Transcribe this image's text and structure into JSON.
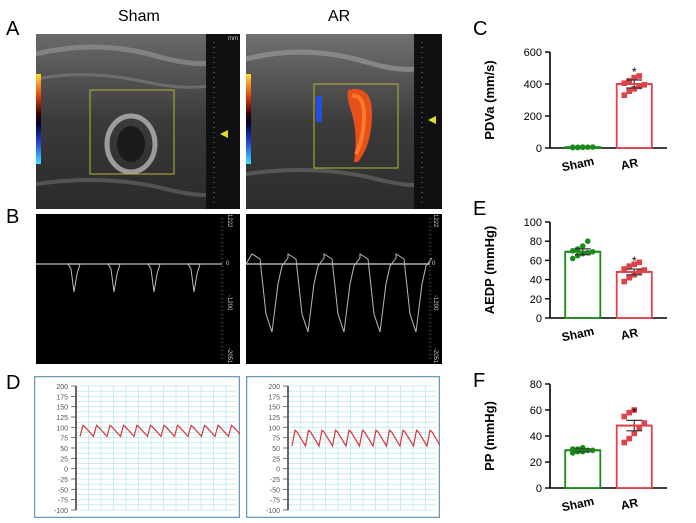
{
  "panel_letters": {
    "a": "A",
    "b": "B",
    "c": "C",
    "d": "D",
    "e": "E",
    "f": "F"
  },
  "column_titles": {
    "left": "Sham",
    "right": "AR"
  },
  "doppler_scale": {
    "top": "1222",
    "zero": "0",
    "mid": "-1200",
    "bottom": "-2051"
  },
  "ultrasound_scale_unit": "mm",
  "bp_trace": {
    "y_ticks": [
      200,
      175,
      150,
      125,
      100,
      75,
      50,
      25,
      0,
      -25,
      -50,
      -75,
      -100
    ],
    "sham_range": [
      78,
      105
    ],
    "ar_range": [
      55,
      93
    ]
  },
  "colors": {
    "sham": "#1a8a1a",
    "ar": "#e0424a",
    "trace": "#d9353a",
    "grid": "#bfe8ee"
  },
  "chart_data": [
    {
      "type": "bar",
      "id": "C",
      "categories": [
        "Sham",
        "AR"
      ],
      "values": [
        5,
        400
      ],
      "sem": [
        0,
        25
      ],
      "ylabel": "PDVa (mm/s)",
      "ylim": [
        0,
        600
      ],
      "yticks": [
        0,
        200,
        400,
        600
      ],
      "significance": [
        "",
        "*"
      ],
      "points": [
        [
          2,
          3,
          4,
          5,
          6,
          5,
          4,
          6
        ],
        [
          330,
          355,
          370,
          385,
          395,
          405,
          420,
          440,
          450
        ]
      ]
    },
    {
      "type": "bar",
      "id": "E",
      "categories": [
        "Sham",
        "AR"
      ],
      "values": [
        69,
        48
      ],
      "sem": [
        3,
        3
      ],
      "ylabel": "AEDP (mmHg)",
      "ylim": [
        0,
        100
      ],
      "yticks": [
        0,
        20,
        40,
        60,
        80,
        100
      ],
      "significance": [
        "",
        "*"
      ],
      "points": [
        [
          62,
          65,
          67,
          68,
          69,
          70,
          72,
          75,
          80
        ],
        [
          38,
          42,
          45,
          48,
          50,
          51,
          54,
          56,
          58
        ]
      ]
    },
    {
      "type": "bar",
      "id": "F",
      "categories": [
        "Sham",
        "AR"
      ],
      "values": [
        29,
        48
      ],
      "sem": [
        1,
        4
      ],
      "ylabel": "PP (mmHg)",
      "ylim": [
        0,
        80
      ],
      "yticks": [
        0,
        20,
        40,
        60,
        80
      ],
      "significance": [
        "",
        "*"
      ],
      "points": [
        [
          27,
          28,
          28,
          29,
          29,
          30,
          30,
          31
        ],
        [
          35,
          38,
          42,
          46,
          50,
          55,
          58,
          60
        ]
      ]
    }
  ]
}
